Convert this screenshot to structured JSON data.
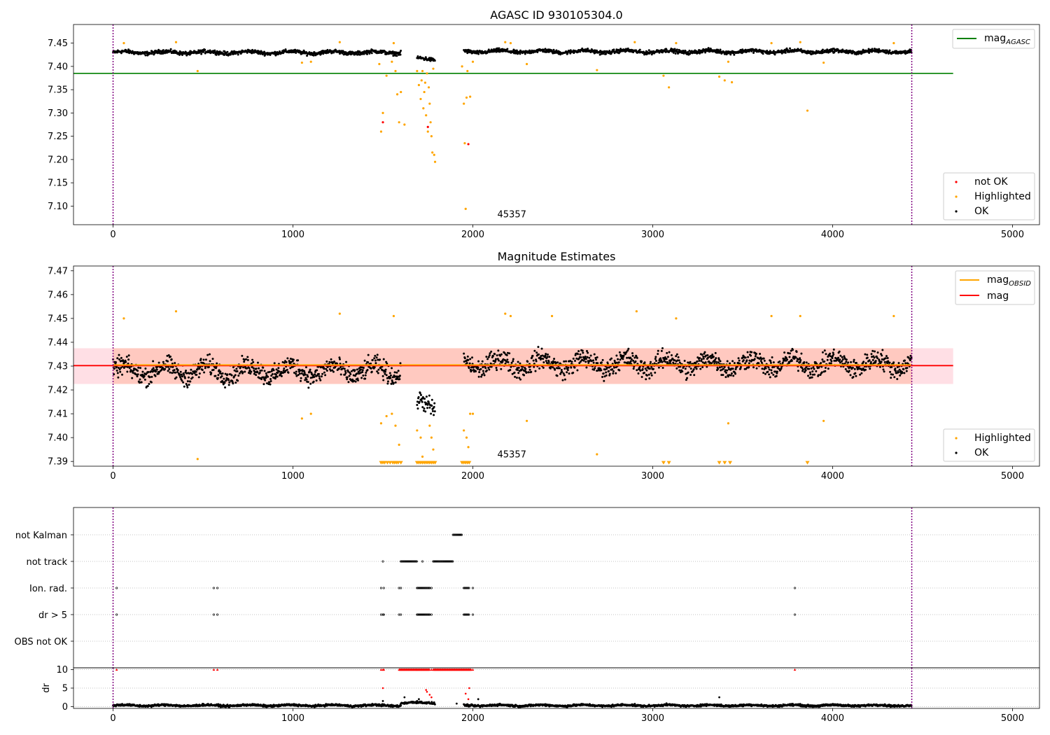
{
  "chart_data": [
    {
      "type": "scatter",
      "title": "AGASC ID 930105304.0",
      "xlabel": "",
      "ylabel": "",
      "xlim": [
        -220,
        5150
      ],
      "ylim": [
        7.06,
        7.49
      ],
      "xticks": [
        0,
        1000,
        2000,
        3000,
        4000,
        5000
      ],
      "yticks": [
        7.1,
        7.15,
        7.2,
        7.25,
        7.3,
        7.35,
        7.4,
        7.45
      ],
      "ytick_labels": [
        "7.10",
        "7.15",
        "7.20",
        "7.25",
        "7.30",
        "7.35",
        "7.40",
        "7.45"
      ],
      "annotation": {
        "text": "45357",
        "x": 2000,
        "y": 7.07
      },
      "vlines": [
        0,
        4440
      ],
      "hline": {
        "name": "mag_AGASC",
        "y": 7.385,
        "x": [
          -220,
          4670
        ],
        "color": "#008000"
      },
      "series": [
        {
          "name": "not OK",
          "color": "#ff0000",
          "points": [
            [
              1500,
              7.28
            ],
            [
              1750,
              7.27
            ],
            [
              1975,
              7.233
            ]
          ]
        },
        {
          "name": "Highlighted",
          "color": "#ffa500",
          "points": [
            [
              60,
              7.45
            ],
            [
              350,
              7.452
            ],
            [
              470,
              7.39
            ],
            [
              1050,
              7.408
            ],
            [
              1100,
              7.41
            ],
            [
              1260,
              7.452
            ],
            [
              1480,
              7.405
            ],
            [
              1490,
              7.26
            ],
            [
              1500,
              7.3
            ],
            [
              1520,
              7.38
            ],
            [
              1550,
              7.41
            ],
            [
              1560,
              7.45
            ],
            [
              1570,
              7.39
            ],
            [
              1580,
              7.34
            ],
            [
              1590,
              7.28
            ],
            [
              1600,
              7.345
            ],
            [
              1620,
              7.275
            ],
            [
              1690,
              7.39
            ],
            [
              1700,
              7.36
            ],
            [
              1710,
              7.33
            ],
            [
              1715,
              7.37
            ],
            [
              1720,
              7.39
            ],
            [
              1725,
              7.31
            ],
            [
              1730,
              7.345
            ],
            [
              1735,
              7.365
            ],
            [
              1740,
              7.295
            ],
            [
              1745,
              7.385
            ],
            [
              1750,
              7.26
            ],
            [
              1755,
              7.355
            ],
            [
              1760,
              7.32
            ],
            [
              1765,
              7.28
            ],
            [
              1770,
              7.25
            ],
            [
              1775,
              7.215
            ],
            [
              1780,
              7.395
            ],
            [
              1785,
              7.21
            ],
            [
              1790,
              7.195
            ],
            [
              1940,
              7.4
            ],
            [
              1950,
              7.32
            ],
            [
              1955,
              7.235
            ],
            [
              1960,
              7.094
            ],
            [
              1965,
              7.333
            ],
            [
              1970,
              7.39
            ],
            [
              1985,
              7.335
            ],
            [
              2000,
              7.41
            ],
            [
              2180,
              7.452
            ],
            [
              2210,
              7.45
            ],
            [
              2300,
              7.405
            ],
            [
              2690,
              7.392
            ],
            [
              2900,
              7.452
            ],
            [
              3060,
              7.38
            ],
            [
              3090,
              7.355
            ],
            [
              3130,
              7.45
            ],
            [
              3370,
              7.378
            ],
            [
              3400,
              7.37
            ],
            [
              3420,
              7.41
            ],
            [
              3440,
              7.366
            ],
            [
              3660,
              7.45
            ],
            [
              3820,
              7.452
            ],
            [
              3860,
              7.305
            ],
            [
              3950,
              7.408
            ],
            [
              4340,
              7.45
            ]
          ]
        },
        {
          "name": "OK",
          "color": "#000000",
          "base_segments": [
            [
              0,
              1600,
              7.43
            ],
            [
              1690,
              1790,
              7.416
            ],
            [
              1950,
              4440,
              7.432
            ]
          ],
          "spread": 0.006
        }
      ],
      "legend": {
        "placement": "upper-right",
        "entries": [
          {
            "label": "mag",
            "subscript": "AGASC",
            "color": "#008000",
            "kind": "line"
          }
        ]
      },
      "legend2": {
        "placement": "lower-right",
        "entries": [
          {
            "label": "not OK",
            "color": "#ff0000",
            "kind": "dot"
          },
          {
            "label": "Highlighted",
            "color": "#ffa500",
            "kind": "dot"
          },
          {
            "label": "OK",
            "color": "#000000",
            "kind": "dot"
          }
        ]
      }
    },
    {
      "type": "scatter",
      "title": "Magnitude Estimates",
      "xlabel": "",
      "ylabel": "",
      "xlim": [
        -220,
        5150
      ],
      "ylim": [
        7.388,
        7.472
      ],
      "xticks": [
        0,
        1000,
        2000,
        3000,
        4000,
        5000
      ],
      "yticks": [
        7.39,
        7.4,
        7.41,
        7.42,
        7.43,
        7.44,
        7.45,
        7.46,
        7.47
      ],
      "ytick_labels": [
        "7.39",
        "7.40",
        "7.41",
        "7.42",
        "7.43",
        "7.44",
        "7.45",
        "7.46",
        "7.47"
      ],
      "annotation": {
        "text": "45357",
        "x": 2000,
        "y": 7.3905
      },
      "vlines": [
        0,
        4440
      ],
      "bands": [
        {
          "color": "#ffc0cb",
          "alpha": 0.5,
          "y": [
            7.4225,
            7.4375
          ],
          "x": [
            -220,
            4670
          ]
        },
        {
          "color": "#ffa07a",
          "alpha": 0.35,
          "y": [
            7.4225,
            7.4375
          ],
          "x": [
            0,
            4440
          ]
        }
      ],
      "hlines": [
        {
          "name": "mag",
          "y": 7.4302,
          "x": [
            -220,
            4670
          ],
          "color": "#ff0000"
        },
        {
          "name": "mag_OBSID",
          "y": 7.4305,
          "x": [
            0,
            4440
          ],
          "color": "#ffa500"
        }
      ],
      "series": [
        {
          "name": "Highlighted",
          "color": "#ffa500",
          "points": [
            [
              60,
              7.45
            ],
            [
              350,
              7.453
            ],
            [
              470,
              7.391
            ],
            [
              1050,
              7.408
            ],
            [
              1100,
              7.41
            ],
            [
              1260,
              7.452
            ],
            [
              1490,
              7.406
            ],
            [
              1520,
              7.409
            ],
            [
              1550,
              7.41
            ],
            [
              1560,
              7.451
            ],
            [
              1570,
              7.405
            ],
            [
              1590,
              7.397
            ],
            [
              1690,
              7.403
            ],
            [
              1710,
              7.4
            ],
            [
              1720,
              7.392
            ],
            [
              1760,
              7.405
            ],
            [
              1770,
              7.4
            ],
            [
              1780,
              7.395
            ],
            [
              1950,
              7.403
            ],
            [
              1965,
              7.4
            ],
            [
              1975,
              7.396
            ],
            [
              1985,
              7.41
            ],
            [
              2000,
              7.41
            ],
            [
              2180,
              7.452
            ],
            [
              2210,
              7.451
            ],
            [
              2300,
              7.407
            ],
            [
              2440,
              7.451
            ],
            [
              2690,
              7.393
            ],
            [
              2910,
              7.453
            ],
            [
              3130,
              7.45
            ],
            [
              3420,
              7.406
            ],
            [
              3660,
              7.451
            ],
            [
              3820,
              7.451
            ],
            [
              3950,
              7.407
            ],
            [
              4340,
              7.451
            ]
          ]
        },
        {
          "name": "Highlighted-below",
          "color": "#ffa500",
          "marker": "triangle",
          "y": 7.3893,
          "xs": [
            1490,
            1500,
            1510,
            1525,
            1540,
            1555,
            1565,
            1575,
            1585,
            1600,
            1690,
            1700,
            1710,
            1720,
            1730,
            1740,
            1750,
            1760,
            1770,
            1780,
            1790,
            1940,
            1950,
            1960,
            1970,
            1980,
            3060,
            3090,
            3370,
            3400,
            3430,
            3860
          ]
        },
        {
          "name": "OK",
          "color": "#000000",
          "base_segments": [
            [
              0,
              1600,
              7.428
            ],
            [
              1690,
              1790,
              7.414
            ],
            [
              1950,
              4440,
              7.431
            ]
          ],
          "spread": 0.006
        }
      ],
      "legend": {
        "placement": "upper-right",
        "entries": [
          {
            "label": "mag",
            "subscript": "OBSID",
            "color": "#ffa500",
            "kind": "line"
          },
          {
            "label": "mag",
            "subscript": "",
            "color": "#ff0000",
            "kind": "line"
          }
        ]
      },
      "legend2": {
        "placement": "lower-right",
        "entries": [
          {
            "label": "Highlighted",
            "color": "#ffa500",
            "kind": "dot"
          },
          {
            "label": "OK",
            "color": "#000000",
            "kind": "dot"
          }
        ]
      }
    },
    {
      "type": "scatter",
      "title": "",
      "xlabel": "",
      "ylabel": "",
      "xlim": [
        -220,
        5150
      ],
      "categories": [
        "not Kalman",
        "not track",
        "Ion. rad.",
        "dr > 5",
        "OBS not OK"
      ],
      "vlines": [
        0,
        4440
      ],
      "grid": true,
      "rows": [
        {
          "name": "not Kalman",
          "ranges": [
            [
              1890,
              1940
            ]
          ],
          "xs": []
        },
        {
          "name": "not track",
          "ranges": [
            [
              1600,
              1690
            ],
            [
              1780,
              1890
            ]
          ],
          "xs": [
            1500,
            1720
          ]
        },
        {
          "name": "Ion. rad.",
          "ranges": [
            [
              1690,
              1760
            ],
            [
              1950,
              1980
            ]
          ],
          "xs": [
            20,
            560,
            580,
            1490,
            1505,
            1590,
            1600,
            1760,
            1770,
            2000,
            3790
          ]
        },
        {
          "name": "dr > 5",
          "ranges": [
            [
              1690,
              1760
            ],
            [
              1950,
              1980
            ]
          ],
          "xs": [
            20,
            560,
            580,
            1490,
            1500,
            1505,
            1590,
            1600,
            1760,
            1770,
            2000,
            3790
          ]
        },
        {
          "name": "OBS not OK",
          "ranges": [],
          "xs": []
        }
      ]
    },
    {
      "type": "scatter",
      "title": "",
      "xlabel": "",
      "ylabel": "dr",
      "xlim": [
        -220,
        5150
      ],
      "ylim": [
        -0.5,
        10.5
      ],
      "xticks": [
        0,
        1000,
        2000,
        3000,
        4000,
        5000
      ],
      "yticks": [
        0,
        5,
        10
      ],
      "ytick_labels": [
        "0",
        "5",
        "10"
      ],
      "grid": true,
      "vlines": [
        0,
        4440
      ],
      "series": [
        {
          "name": "dr > 5",
          "color": "#ff0000",
          "y": 10,
          "ranges": [
            [
              1590,
              1690
            ],
            [
              1690,
              1760
            ],
            [
              1780,
              1990
            ]
          ],
          "xs": [
            20,
            560,
            580,
            1490,
            1500,
            1505,
            1770,
            2000,
            3790
          ]
        },
        {
          "name": "dr mid",
          "color": "#ff0000",
          "points": [
            [
              1500,
              5.0
            ],
            [
              1740,
              4.5
            ],
            [
              1745,
              4.0
            ],
            [
              1760,
              3.2
            ],
            [
              1770,
              2.5
            ],
            [
              1960,
              3.5
            ],
            [
              1980,
              5.0
            ],
            [
              1975,
              2.0
            ]
          ]
        },
        {
          "name": "dr",
          "color": "#000000",
          "base_segments": [
            [
              0,
              1600,
              0.3
            ],
            [
              1600,
              1790,
              1.0
            ],
            [
              1950,
              4440,
              0.3
            ]
          ],
          "spread": 0.4,
          "points": [
            [
              1620,
              2.5
            ],
            [
              1690,
              1.5
            ],
            [
              1700,
              2.0
            ],
            [
              2030,
              2.0
            ],
            [
              3370,
              2.5
            ],
            [
              1500,
              1.5
            ],
            [
              1910,
              0.8
            ]
          ]
        }
      ]
    }
  ],
  "x_tick_labels": [
    "0",
    "1000",
    "2000",
    "3000",
    "4000",
    "5000"
  ],
  "colors": {
    "ok": "#000000",
    "highlighted": "#ffa500",
    "not_ok": "#ff0000",
    "agasc": "#008000",
    "vline": "#800080"
  }
}
